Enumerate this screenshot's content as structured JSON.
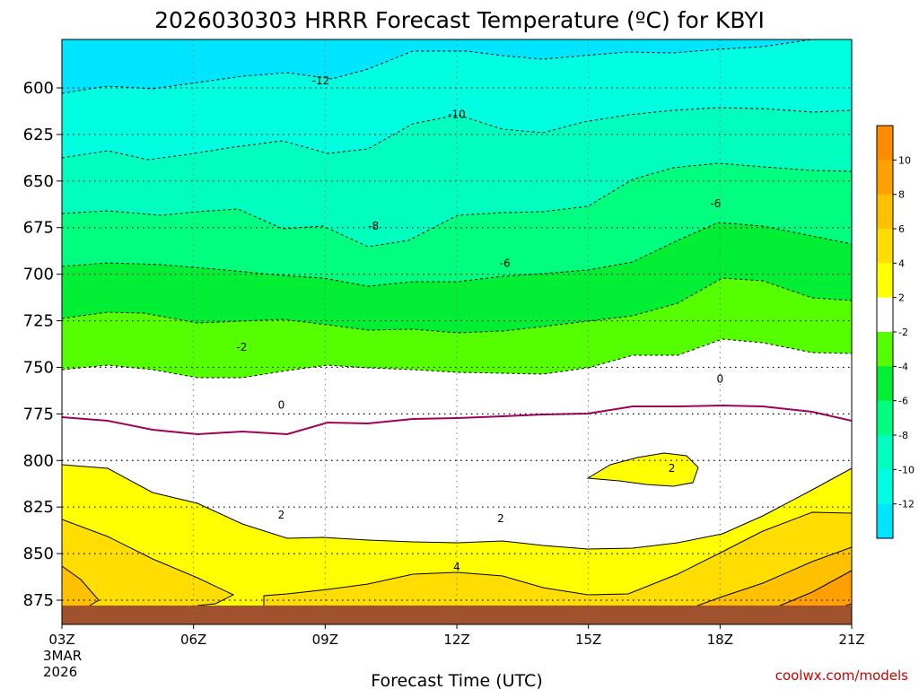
{
  "chart_data": {
    "type": "heatmap",
    "title": "2026030303 HRRR Forecast Temperature (ºC) for KBYI",
    "xlabel": "Forecast Time (UTC)",
    "credit": "coolwx.com/models",
    "x_start_label": [
      "3MAR",
      "2026"
    ],
    "x_ticks": [
      "03Z",
      "06Z",
      "09Z",
      "12Z",
      "15Z",
      "18Z",
      "21Z"
    ],
    "x_hours": [
      3,
      6,
      9,
      12,
      15,
      18,
      21
    ],
    "y_ticks": [
      600,
      625,
      650,
      675,
      700,
      725,
      750,
      775,
      800,
      825,
      850,
      875
    ],
    "ylim_hpa": [
      888,
      574
    ],
    "colorbar": {
      "labels": [
        "10",
        "8",
        "6",
        "4",
        "2",
        "-2",
        "-4",
        "-6",
        "-8",
        "-10",
        "-12"
      ],
      "colors": [
        "#ff8c00",
        "#ffa000",
        "#ffc000",
        "#ffdd00",
        "#ffff00",
        "#ffffff",
        "#55ff00",
        "#00ee33",
        "#00ff7f",
        "#00ffbf",
        "#00ffe0",
        "#00e5ff"
      ]
    },
    "contour_labels": [
      {
        "hour": 8.9,
        "hpa": 596,
        "text": "-12"
      },
      {
        "hour": 12.0,
        "hpa": 614,
        "text": "-10"
      },
      {
        "hour": 10.1,
        "hpa": 674,
        "text": "-8"
      },
      {
        "hour": 17.9,
        "hpa": 662,
        "text": "-6"
      },
      {
        "hour": 13.1,
        "hpa": 694,
        "text": "-6"
      },
      {
        "hour": 7.1,
        "hpa": 739,
        "text": "-2"
      },
      {
        "hour": 8.0,
        "hpa": 770,
        "text": "0"
      },
      {
        "hour": 18.0,
        "hpa": 756,
        "text": "0"
      },
      {
        "hour": 8.0,
        "hpa": 829,
        "text": "2"
      },
      {
        "hour": 13.0,
        "hpa": 831,
        "text": "2"
      },
      {
        "hour": 16.9,
        "hpa": 804,
        "text": "2"
      },
      {
        "hour": 12.0,
        "hpa": 857,
        "text": "4"
      }
    ],
    "ground_hpa": 884,
    "colors": {
      "contour": "#000000",
      "zero_line": "#a0005a",
      "ground": "#a0522d",
      "grid": "#000000",
      "credit": "#cc0000"
    }
  }
}
